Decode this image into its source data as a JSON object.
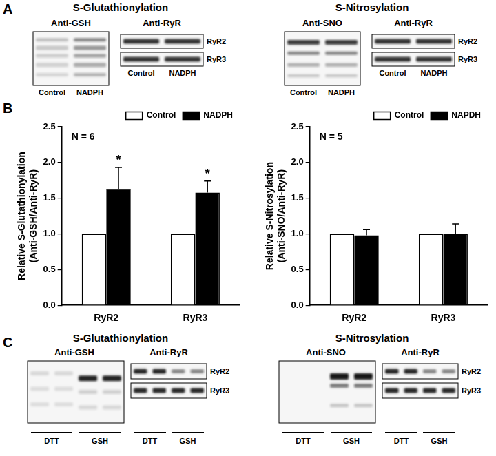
{
  "panel_labels": [
    "A",
    "B",
    "C"
  ],
  "panel_A": {
    "left": {
      "title": "S-Glutathionylation",
      "probe": "Anti-GSH",
      "loading": "Anti-RyR",
      "bands": [
        "RyR2",
        "RyR3"
      ],
      "lanes": [
        "Control",
        "NADPH"
      ]
    },
    "right": {
      "title": "S-Nitrosylation",
      "probe": "Anti-SNO",
      "loading": "Anti-RyR",
      "bands": [
        "RyR2",
        "RyR3"
      ],
      "lanes": [
        "Control",
        "NADPH"
      ]
    }
  },
  "panel_C": {
    "left": {
      "title": "S-Glutathionylation",
      "probe": "Anti-GSH",
      "loading": "Anti-RyR",
      "bands": [
        "RyR2",
        "RyR3"
      ],
      "lane_groups": [
        "DTT",
        "GSH"
      ]
    },
    "right": {
      "title": "S-Nitrosylation",
      "probe": "Anti-SNO",
      "loading": "Anti-RyR",
      "bands": [
        "RyR2",
        "RyR3"
      ],
      "lane_groups": [
        "DTT",
        "GSH"
      ]
    }
  },
  "chart_data": [
    {
      "type": "bar",
      "y_label": [
        "Relative S-Glutathionylation",
        "(Anti-GSH/Anti-RyR)"
      ],
      "categories": [
        "RyR2",
        "RyR3"
      ],
      "series": [
        {
          "name": "Control",
          "color": "#ffffff",
          "values": [
            1.0,
            1.0
          ],
          "errors": [
            0,
            0
          ]
        },
        {
          "name": "NADPH",
          "color": "#000000",
          "values": [
            1.63,
            1.58
          ],
          "errors": [
            0.3,
            0.16
          ]
        }
      ],
      "ylim": [
        0,
        2.5
      ],
      "yticks": [
        {
          "value": 0,
          "label": "0.0"
        },
        0.5,
        {
          "value": 1,
          "label": "1.0"
        },
        1.5,
        {
          "value": 2,
          "label": "2.0"
        },
        2.5
      ],
      "grid": false,
      "legend": "top-right",
      "annotations": [
        {
          "text": "N = 6"
        },
        {
          "text": "*",
          "category": "RyR2",
          "series": "NADPH"
        },
        {
          "text": "*",
          "category": "RyR3",
          "series": "NADPH"
        }
      ]
    },
    {
      "type": "bar",
      "y_label": [
        "Relative S-Nitrosylation",
        "(Anti-SNO/Anti-RyR)"
      ],
      "categories": [
        "RyR2",
        "RyR3"
      ],
      "series": [
        {
          "name": "Control",
          "color": "#ffffff",
          "values": [
            1.0,
            1.0
          ],
          "errors": [
            0,
            0
          ]
        },
        {
          "name": "NAPDH",
          "color": "#000000",
          "values": [
            0.98,
            1.0
          ],
          "errors": [
            0.08,
            0.14
          ]
        }
      ],
      "ylim": [
        0,
        2.5
      ],
      "yticks": [
        {
          "value": 0,
          "label": "0.0"
        },
        0.5,
        {
          "value": 1,
          "label": "1.0"
        },
        1.5,
        {
          "value": 2,
          "label": "2.0"
        },
        2.5
      ],
      "grid": false,
      "legend": "top-right",
      "annotations": [
        {
          "text": "N = 5"
        }
      ]
    }
  ]
}
